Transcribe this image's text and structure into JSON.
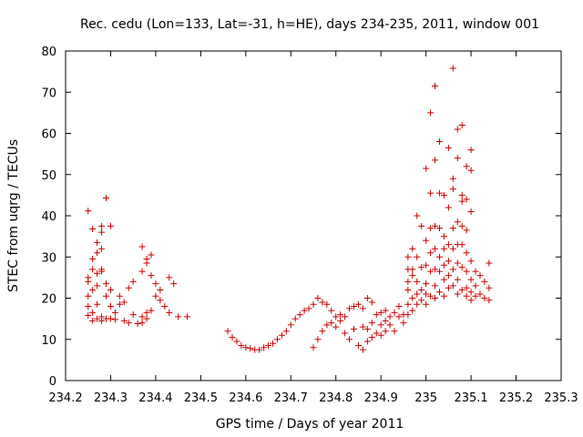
{
  "chart_data": {
    "type": "scatter",
    "title": "Rec. cedu (Lon=133, Lat=-31, h=HE), days 234-235, 2011, window 001",
    "xlabel": "GPS time / Days of year 2011",
    "ylabel": "STEC from uqrg / TECUs",
    "xlim": [
      234.2,
      235.3
    ],
    "ylim": [
      0,
      80
    ],
    "grid": false,
    "legend": "none",
    "marker": "+",
    "color": "#cc0000",
    "x_ticks": [
      "234.2",
      "234.3",
      "234.4",
      "234.5",
      "234.6",
      "234.7",
      "234.8",
      "234.9",
      "235",
      "235.1",
      "235.2",
      "235.3"
    ],
    "y_ticks": [
      "0",
      "10",
      "20",
      "30",
      "40",
      "50",
      "60",
      "70",
      "80"
    ],
    "points": [
      [
        234.25,
        41.2
      ],
      [
        234.25,
        25.0
      ],
      [
        234.25,
        24.0
      ],
      [
        234.25,
        20.5
      ],
      [
        234.25,
        18.0
      ],
      [
        234.25,
        15.8
      ],
      [
        234.26,
        36.8
      ],
      [
        234.26,
        29.5
      ],
      [
        234.26,
        27.0
      ],
      [
        234.26,
        22.0
      ],
      [
        234.26,
        16.5
      ],
      [
        234.26,
        14.5
      ],
      [
        234.27,
        33.5
      ],
      [
        234.27,
        31.0
      ],
      [
        234.27,
        26.0
      ],
      [
        234.27,
        23.0
      ],
      [
        234.27,
        18.5
      ],
      [
        234.27,
        15.0
      ],
      [
        234.28,
        37.5
      ],
      [
        234.28,
        36.0
      ],
      [
        234.28,
        32.0
      ],
      [
        234.28,
        27.0
      ],
      [
        234.28,
        26.5
      ],
      [
        234.28,
        15.5
      ],
      [
        234.28,
        14.5
      ],
      [
        234.29,
        44.3
      ],
      [
        234.29,
        23.5
      ],
      [
        234.29,
        20.5
      ],
      [
        234.29,
        15.0
      ],
      [
        234.3,
        37.5
      ],
      [
        234.3,
        22.0
      ],
      [
        234.3,
        18.0
      ],
      [
        234.3,
        15.0
      ],
      [
        234.31,
        16.5
      ],
      [
        234.31,
        14.8
      ],
      [
        234.32,
        20.5
      ],
      [
        234.32,
        18.5
      ],
      [
        234.33,
        19.0
      ],
      [
        234.33,
        14.5
      ],
      [
        234.34,
        22.5
      ],
      [
        234.34,
        14.0
      ],
      [
        234.35,
        24.0
      ],
      [
        234.35,
        16.0
      ],
      [
        234.36,
        13.8
      ],
      [
        234.37,
        32.5
      ],
      [
        234.37,
        26.5
      ],
      [
        234.37,
        15.5
      ],
      [
        234.37,
        14.0
      ],
      [
        234.38,
        29.5
      ],
      [
        234.38,
        28.5
      ],
      [
        234.38,
        16.5
      ],
      [
        234.38,
        15.0
      ],
      [
        234.39,
        30.5
      ],
      [
        234.39,
        25.5
      ],
      [
        234.39,
        17.0
      ],
      [
        234.4,
        23.5
      ],
      [
        234.4,
        20.5
      ],
      [
        234.41,
        22.0
      ],
      [
        234.41,
        19.5
      ],
      [
        234.42,
        18.0
      ],
      [
        234.43,
        25.0
      ],
      [
        234.43,
        16.5
      ],
      [
        234.44,
        23.5
      ],
      [
        234.45,
        15.5
      ],
      [
        234.47,
        15.5
      ],
      [
        234.56,
        12.0
      ],
      [
        234.57,
        10.5
      ],
      [
        234.58,
        9.5
      ],
      [
        234.59,
        8.5
      ],
      [
        234.6,
        8.0
      ],
      [
        234.61,
        7.8
      ],
      [
        234.62,
        7.5
      ],
      [
        234.63,
        7.5
      ],
      [
        234.64,
        8.0
      ],
      [
        234.65,
        8.5
      ],
      [
        234.66,
        9.0
      ],
      [
        234.67,
        10.0
      ],
      [
        234.68,
        11.0
      ],
      [
        234.69,
        12.0
      ],
      [
        234.7,
        13.5
      ],
      [
        234.71,
        15.0
      ],
      [
        234.72,
        16.0
      ],
      [
        234.73,
        17.0
      ],
      [
        234.74,
        17.5
      ],
      [
        234.75,
        18.5
      ],
      [
        234.76,
        20.0
      ],
      [
        234.77,
        19.0
      ],
      [
        234.78,
        18.5
      ],
      [
        234.79,
        17.0
      ],
      [
        234.75,
        8.0
      ],
      [
        234.76,
        10.0
      ],
      [
        234.77,
        12.0
      ],
      [
        234.78,
        13.5
      ],
      [
        234.79,
        14.0
      ],
      [
        234.8,
        15.5
      ],
      [
        234.8,
        13.0
      ],
      [
        234.81,
        16.0
      ],
      [
        234.81,
        14.5
      ],
      [
        234.82,
        15.5
      ],
      [
        234.82,
        11.5
      ],
      [
        234.83,
        17.5
      ],
      [
        234.83,
        10.0
      ],
      [
        234.84,
        18.0
      ],
      [
        234.84,
        12.5
      ],
      [
        234.85,
        18.5
      ],
      [
        234.85,
        8.5
      ],
      [
        234.86,
        17.5
      ],
      [
        234.86,
        13.0
      ],
      [
        234.86,
        7.5
      ],
      [
        234.87,
        20.0
      ],
      [
        234.87,
        12.5
      ],
      [
        234.87,
        9.5
      ],
      [
        234.88,
        19.0
      ],
      [
        234.88,
        14.0
      ],
      [
        234.88,
        10.5
      ],
      [
        234.89,
        16.0
      ],
      [
        234.89,
        11.5
      ],
      [
        234.9,
        16.5
      ],
      [
        234.9,
        13.5
      ],
      [
        234.9,
        11.0
      ],
      [
        234.91,
        17.0
      ],
      [
        234.91,
        14.5
      ],
      [
        234.91,
        12.0
      ],
      [
        234.92,
        15.5
      ],
      [
        234.92,
        13.5
      ],
      [
        234.93,
        16.5
      ],
      [
        234.93,
        12.0
      ],
      [
        234.94,
        18.0
      ],
      [
        234.94,
        15.5
      ],
      [
        234.95,
        16.0
      ],
      [
        234.95,
        14.0
      ],
      [
        234.96,
        30.0
      ],
      [
        234.96,
        27.0
      ],
      [
        234.96,
        24.0
      ],
      [
        234.96,
        22.0
      ],
      [
        234.96,
        18.5
      ],
      [
        234.96,
        16.0
      ],
      [
        234.97,
        32.0
      ],
      [
        234.97,
        27.0
      ],
      [
        234.97,
        25.5
      ],
      [
        234.97,
        20.0
      ],
      [
        234.97,
        17.0
      ],
      [
        234.98,
        40.0
      ],
      [
        234.98,
        30.0
      ],
      [
        234.98,
        24.0
      ],
      [
        234.98,
        21.0
      ],
      [
        234.98,
        18.5
      ],
      [
        234.99,
        37.5
      ],
      [
        234.99,
        27.5
      ],
      [
        234.99,
        22.0
      ],
      [
        234.99,
        19.5
      ],
      [
        235.0,
        51.5
      ],
      [
        235.0,
        34.0
      ],
      [
        235.0,
        28.0
      ],
      [
        235.0,
        23.5
      ],
      [
        235.0,
        21.0
      ],
      [
        235.0,
        18.5
      ],
      [
        235.01,
        65.0
      ],
      [
        235.01,
        45.5
      ],
      [
        235.01,
        37.0
      ],
      [
        235.01,
        31.0
      ],
      [
        235.01,
        26.5
      ],
      [
        235.01,
        20.5
      ],
      [
        235.02,
        71.5
      ],
      [
        235.02,
        53.5
      ],
      [
        235.02,
        37.5
      ],
      [
        235.02,
        32.0
      ],
      [
        235.02,
        27.0
      ],
      [
        235.02,
        23.0
      ],
      [
        235.02,
        20.0
      ],
      [
        235.03,
        58.0
      ],
      [
        235.03,
        45.5
      ],
      [
        235.03,
        37.0
      ],
      [
        235.03,
        30.0
      ],
      [
        235.03,
        26.5
      ],
      [
        235.03,
        21.5
      ],
      [
        235.04,
        45.0
      ],
      [
        235.04,
        35.0
      ],
      [
        235.04,
        32.0
      ],
      [
        235.04,
        28.0
      ],
      [
        235.04,
        24.5
      ],
      [
        235.04,
        20.5
      ],
      [
        235.05,
        56.5
      ],
      [
        235.05,
        42.0
      ],
      [
        235.05,
        33.0
      ],
      [
        235.05,
        29.0
      ],
      [
        235.05,
        25.5
      ],
      [
        235.05,
        22.5
      ],
      [
        235.06,
        75.8
      ],
      [
        235.06,
        49.0
      ],
      [
        235.06,
        46.5
      ],
      [
        235.06,
        37.0
      ],
      [
        235.06,
        32.0
      ],
      [
        235.06,
        27.0
      ],
      [
        235.06,
        23.0
      ],
      [
        235.07,
        61.0
      ],
      [
        235.07,
        54.0
      ],
      [
        235.07,
        38.5
      ],
      [
        235.07,
        33.0
      ],
      [
        235.07,
        28.5
      ],
      [
        235.07,
        24.5
      ],
      [
        235.07,
        21.0
      ],
      [
        235.08,
        62.0
      ],
      [
        235.08,
        45.0
      ],
      [
        235.08,
        43.5
      ],
      [
        235.08,
        37.5
      ],
      [
        235.08,
        33.0
      ],
      [
        235.08,
        27.5
      ],
      [
        235.08,
        22.0
      ],
      [
        235.09,
        52.0
      ],
      [
        235.09,
        44.0
      ],
      [
        235.09,
        36.5
      ],
      [
        235.09,
        31.0
      ],
      [
        235.09,
        26.5
      ],
      [
        235.09,
        22.5
      ],
      [
        235.09,
        20.5
      ],
      [
        235.1,
        56.0
      ],
      [
        235.1,
        51.0
      ],
      [
        235.1,
        41.0
      ],
      [
        235.1,
        29.0
      ],
      [
        235.1,
        24.5
      ],
      [
        235.1,
        21.5
      ],
      [
        235.1,
        19.5
      ],
      [
        235.11,
        26.5
      ],
      [
        235.11,
        23.0
      ],
      [
        235.11,
        20.5
      ],
      [
        235.12,
        25.5
      ],
      [
        235.12,
        21.0
      ],
      [
        235.13,
        24.0
      ],
      [
        235.13,
        20.0
      ],
      [
        235.14,
        28.5
      ],
      [
        235.14,
        22.5
      ],
      [
        235.14,
        19.5
      ]
    ]
  }
}
